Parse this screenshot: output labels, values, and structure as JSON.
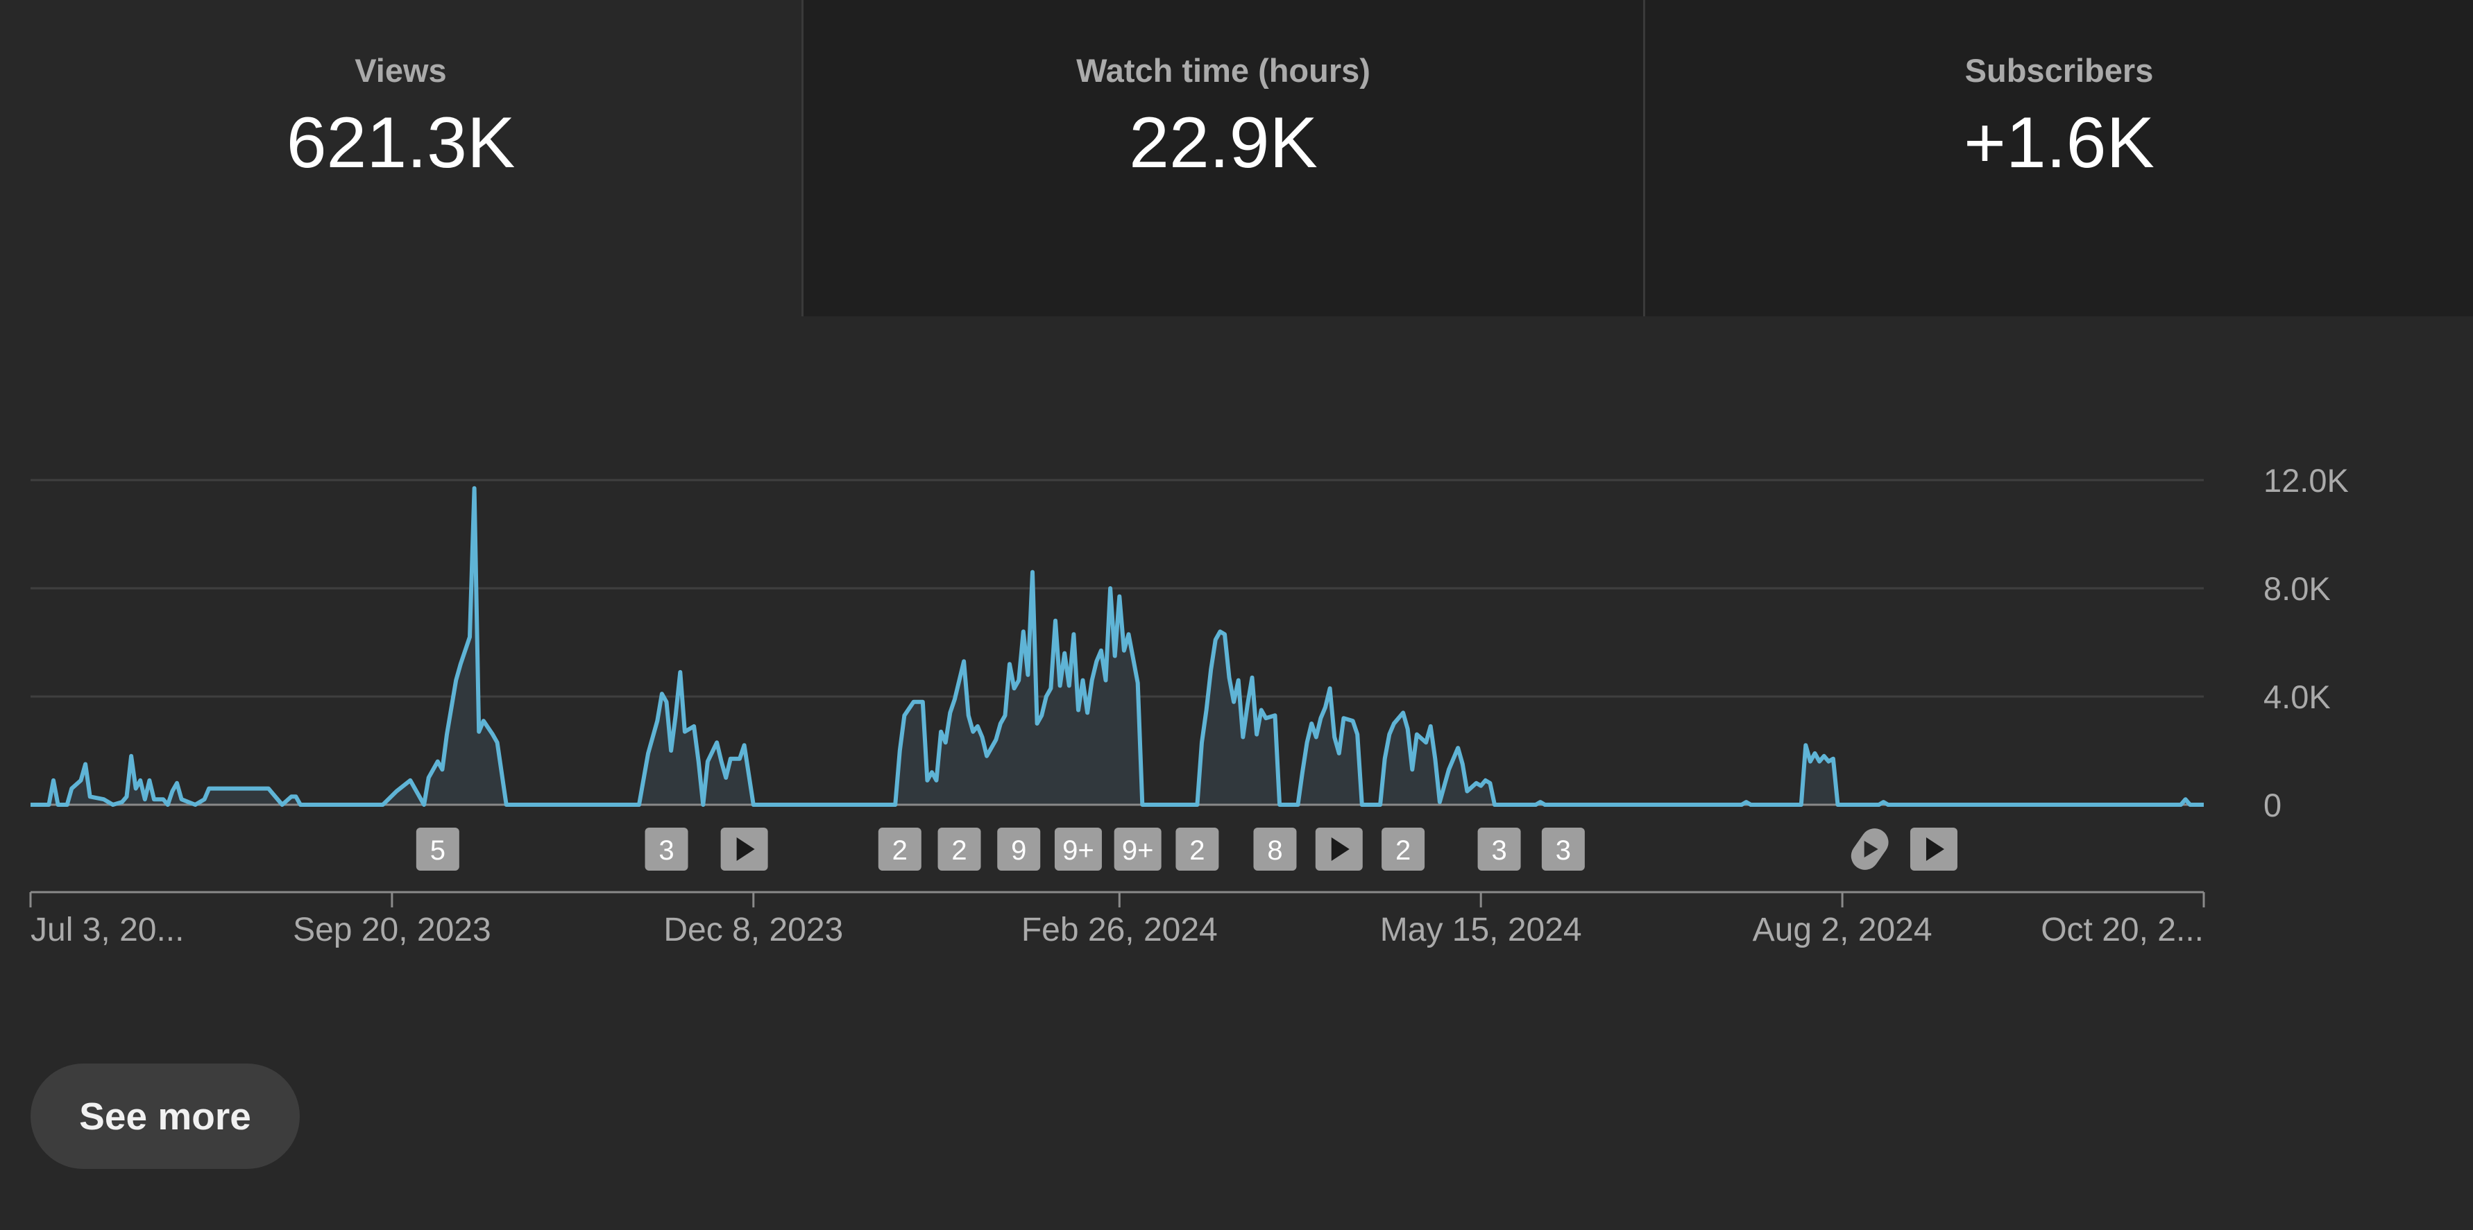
{
  "metrics": [
    {
      "label": "Views",
      "value": "621.3K"
    },
    {
      "label": "Watch time (hours)",
      "value": "22.9K"
    },
    {
      "label": "Subscribers",
      "value": "+1.6K"
    }
  ],
  "see_more_label": "See more",
  "colors": {
    "line": "#5fb4d6",
    "fill": "#31383d",
    "grid": "#3f3f3f",
    "marker": "#9e9e9e",
    "axis_text": "#aaaaaa"
  },
  "chart_data": {
    "type": "area",
    "xlabel": "",
    "ylabel": "",
    "ylim": [
      0,
      12000
    ],
    "y_ticks": [
      {
        "value": 12000,
        "label": "12.0K"
      },
      {
        "value": 8000,
        "label": "8.0K"
      },
      {
        "value": 4000,
        "label": "4.0K"
      },
      {
        "value": 0,
        "label": "0"
      }
    ],
    "x_range": [
      "2023-07-03",
      "2024-10-20"
    ],
    "x_ticks": [
      {
        "date": "2023-07-03",
        "label": "Jul 3, 20..."
      },
      {
        "date": "2023-09-20",
        "label": "Sep 20, 2023"
      },
      {
        "date": "2023-12-08",
        "label": "Dec 8, 2023"
      },
      {
        "date": "2024-02-26",
        "label": "Feb 26, 2024"
      },
      {
        "date": "2024-05-15",
        "label": "May 15, 2024"
      },
      {
        "date": "2024-08-02",
        "label": "Aug 2, 2024"
      },
      {
        "date": "2024-10-20",
        "label": "Oct 20, 2..."
      }
    ],
    "series": [
      {
        "points": [
          [
            "2023-07-03",
            0
          ],
          [
            "2023-07-07",
            0
          ],
          [
            "2023-07-08",
            900
          ],
          [
            "2023-07-09",
            0
          ],
          [
            "2023-07-11",
            0
          ],
          [
            "2023-07-12",
            600
          ],
          [
            "2023-07-14",
            900
          ],
          [
            "2023-07-15",
            1500
          ],
          [
            "2023-07-16",
            300
          ],
          [
            "2023-07-19",
            200
          ],
          [
            "2023-07-21",
            0
          ],
          [
            "2023-07-23",
            100
          ],
          [
            "2023-07-24",
            300
          ],
          [
            "2023-07-25",
            1800
          ],
          [
            "2023-07-26",
            600
          ],
          [
            "2023-07-27",
            900
          ],
          [
            "2023-07-28",
            200
          ],
          [
            "2023-07-29",
            900
          ],
          [
            "2023-07-30",
            200
          ],
          [
            "2023-08-01",
            200
          ],
          [
            "2023-08-02",
            0
          ],
          [
            "2023-08-03",
            500
          ],
          [
            "2023-08-04",
            800
          ],
          [
            "2023-08-05",
            200
          ],
          [
            "2023-08-08",
            0
          ],
          [
            "2023-08-10",
            200
          ],
          [
            "2023-08-11",
            600
          ],
          [
            "2023-08-24",
            600
          ],
          [
            "2023-08-25",
            400
          ],
          [
            "2023-08-27",
            0
          ],
          [
            "2023-08-29",
            300
          ],
          [
            "2023-08-30",
            300
          ],
          [
            "2023-08-31",
            0
          ],
          [
            "2023-09-18",
            0
          ],
          [
            "2023-09-21",
            500
          ],
          [
            "2023-09-24",
            900
          ],
          [
            "2023-09-25",
            600
          ],
          [
            "2023-09-27",
            0
          ],
          [
            "2023-09-28",
            1000
          ],
          [
            "2023-09-30",
            1600
          ],
          [
            "2023-10-01",
            1300
          ],
          [
            "2023-10-02",
            2600
          ],
          [
            "2023-10-04",
            4600
          ],
          [
            "2023-10-05",
            5200
          ],
          [
            "2023-10-07",
            6200
          ],
          [
            "2023-10-08",
            11700
          ],
          [
            "2023-10-09",
            2700
          ],
          [
            "2023-10-10",
            3100
          ],
          [
            "2023-10-12",
            2600
          ],
          [
            "2023-10-13",
            2300
          ],
          [
            "2023-10-15",
            0
          ],
          [
            "2023-11-13",
            0
          ],
          [
            "2023-11-15",
            1900
          ],
          [
            "2023-11-17",
            3100
          ],
          [
            "2023-11-18",
            4100
          ],
          [
            "2023-11-19",
            3800
          ],
          [
            "2023-11-20",
            2000
          ],
          [
            "2023-11-21",
            3300
          ],
          [
            "2023-11-22",
            4900
          ],
          [
            "2023-11-23",
            2700
          ],
          [
            "2023-11-25",
            2900
          ],
          [
            "2023-11-26",
            1600
          ],
          [
            "2023-11-27",
            0
          ],
          [
            "2023-11-28",
            1600
          ],
          [
            "2023-11-30",
            2300
          ],
          [
            "2023-12-01",
            1600
          ],
          [
            "2023-12-02",
            1000
          ],
          [
            "2023-12-03",
            1700
          ],
          [
            "2023-12-05",
            1700
          ],
          [
            "2023-12-06",
            2200
          ],
          [
            "2023-12-08",
            0
          ],
          [
            "2024-01-08",
            0
          ],
          [
            "2024-01-09",
            2000
          ],
          [
            "2024-01-10",
            3300
          ],
          [
            "2024-01-12",
            3800
          ],
          [
            "2024-01-14",
            3800
          ],
          [
            "2024-01-15",
            900
          ],
          [
            "2024-01-16",
            1200
          ],
          [
            "2024-01-17",
            900
          ],
          [
            "2024-01-18",
            2700
          ],
          [
            "2024-01-19",
            2300
          ],
          [
            "2024-01-20",
            3400
          ],
          [
            "2024-01-21",
            3900
          ],
          [
            "2024-01-22",
            4600
          ],
          [
            "2024-01-23",
            5300
          ],
          [
            "2024-01-24",
            3300
          ],
          [
            "2024-01-25",
            2700
          ],
          [
            "2024-01-26",
            2900
          ],
          [
            "2024-01-27",
            2500
          ],
          [
            "2024-01-28",
            1800
          ],
          [
            "2024-01-30",
            2400
          ],
          [
            "2024-01-31",
            3000
          ],
          [
            "2024-02-01",
            3300
          ],
          [
            "2024-02-02",
            5200
          ],
          [
            "2024-02-03",
            4300
          ],
          [
            "2024-02-04",
            4600
          ],
          [
            "2024-02-05",
            6400
          ],
          [
            "2024-02-06",
            4800
          ],
          [
            "2024-02-07",
            8600
          ],
          [
            "2024-02-08",
            3000
          ],
          [
            "2024-02-09",
            3300
          ],
          [
            "2024-02-10",
            4000
          ],
          [
            "2024-02-11",
            4300
          ],
          [
            "2024-02-12",
            6800
          ],
          [
            "2024-02-13",
            4400
          ],
          [
            "2024-02-14",
            5600
          ],
          [
            "2024-02-15",
            4400
          ],
          [
            "2024-02-16",
            6300
          ],
          [
            "2024-02-17",
            3500
          ],
          [
            "2024-02-18",
            4600
          ],
          [
            "2024-02-19",
            3400
          ],
          [
            "2024-02-20",
            4600
          ],
          [
            "2024-02-21",
            5300
          ],
          [
            "2024-02-22",
            5700
          ],
          [
            "2024-02-23",
            4600
          ],
          [
            "2024-02-24",
            8000
          ],
          [
            "2024-02-25",
            5500
          ],
          [
            "2024-02-26",
            7700
          ],
          [
            "2024-02-27",
            5700
          ],
          [
            "2024-02-28",
            6300
          ],
          [
            "2024-03-01",
            4500
          ],
          [
            "2024-03-02",
            0
          ],
          [
            "2024-03-14",
            0
          ],
          [
            "2024-03-15",
            2300
          ],
          [
            "2024-03-16",
            3500
          ],
          [
            "2024-03-17",
            5000
          ],
          [
            "2024-03-18",
            6100
          ],
          [
            "2024-03-19",
            6400
          ],
          [
            "2024-03-20",
            6300
          ],
          [
            "2024-03-21",
            4700
          ],
          [
            "2024-03-22",
            3800
          ],
          [
            "2024-03-23",
            4600
          ],
          [
            "2024-03-24",
            2500
          ],
          [
            "2024-03-25",
            3700
          ],
          [
            "2024-03-26",
            4700
          ],
          [
            "2024-03-27",
            2600
          ],
          [
            "2024-03-28",
            3500
          ],
          [
            "2024-03-29",
            3200
          ],
          [
            "2024-03-31",
            3300
          ],
          [
            "2024-04-01",
            0
          ],
          [
            "2024-04-05",
            0
          ],
          [
            "2024-04-06",
            1200
          ],
          [
            "2024-04-07",
            2300
          ],
          [
            "2024-04-08",
            3000
          ],
          [
            "2024-04-09",
            2500
          ],
          [
            "2024-04-10",
            3200
          ],
          [
            "2024-04-11",
            3600
          ],
          [
            "2024-04-12",
            4300
          ],
          [
            "2024-04-13",
            2500
          ],
          [
            "2024-04-14",
            1900
          ],
          [
            "2024-04-15",
            3200
          ],
          [
            "2024-04-17",
            3100
          ],
          [
            "2024-04-18",
            2600
          ],
          [
            "2024-04-19",
            0
          ],
          [
            "2024-04-23",
            0
          ],
          [
            "2024-04-24",
            1700
          ],
          [
            "2024-04-25",
            2600
          ],
          [
            "2024-04-26",
            3000
          ],
          [
            "2024-04-28",
            3400
          ],
          [
            "2024-04-29",
            2800
          ],
          [
            "2024-04-30",
            1300
          ],
          [
            "2024-05-01",
            2600
          ],
          [
            "2024-05-03",
            2300
          ],
          [
            "2024-05-04",
            2900
          ],
          [
            "2024-05-05",
            1700
          ],
          [
            "2024-05-06",
            100
          ],
          [
            "2024-05-08",
            1300
          ],
          [
            "2024-05-10",
            2100
          ],
          [
            "2024-05-11",
            1500
          ],
          [
            "2024-05-12",
            500
          ],
          [
            "2024-05-14",
            800
          ],
          [
            "2024-05-15",
            700
          ],
          [
            "2024-05-16",
            900
          ],
          [
            "2024-05-17",
            800
          ],
          [
            "2024-05-18",
            0
          ],
          [
            "2024-05-27",
            0
          ],
          [
            "2024-05-28",
            100
          ],
          [
            "2024-05-29",
            0
          ],
          [
            "2024-07-11",
            0
          ],
          [
            "2024-07-12",
            100
          ],
          [
            "2024-07-13",
            0
          ],
          [
            "2024-07-24",
            0
          ],
          [
            "2024-07-25",
            2200
          ],
          [
            "2024-07-26",
            1600
          ],
          [
            "2024-07-27",
            1900
          ],
          [
            "2024-07-28",
            1600
          ],
          [
            "2024-07-29",
            1800
          ],
          [
            "2024-07-30",
            1600
          ],
          [
            "2024-07-31",
            1700
          ],
          [
            "2024-08-01",
            0
          ],
          [
            "2024-08-10",
            0
          ],
          [
            "2024-08-11",
            100
          ],
          [
            "2024-08-12",
            0
          ],
          [
            "2024-10-15",
            0
          ],
          [
            "2024-10-16",
            200
          ],
          [
            "2024-10-17",
            0
          ],
          [
            "2024-10-20",
            0
          ]
        ]
      }
    ],
    "markers": [
      {
        "date": "2023-09-30",
        "kind": "count",
        "label": "5"
      },
      {
        "date": "2023-11-19",
        "kind": "count",
        "label": "3"
      },
      {
        "date": "2023-12-06",
        "kind": "play",
        "label": ""
      },
      {
        "date": "2024-01-09",
        "kind": "count",
        "label": "2"
      },
      {
        "date": "2024-01-22",
        "kind": "count",
        "label": "2"
      },
      {
        "date": "2024-02-04",
        "kind": "count",
        "label": "9"
      },
      {
        "date": "2024-02-17",
        "kind": "count",
        "label": "9+"
      },
      {
        "date": "2024-03-01",
        "kind": "count",
        "label": "9+"
      },
      {
        "date": "2024-03-14",
        "kind": "count",
        "label": "2"
      },
      {
        "date": "2024-03-31",
        "kind": "count",
        "label": "8"
      },
      {
        "date": "2024-04-14",
        "kind": "play",
        "label": ""
      },
      {
        "date": "2024-04-28",
        "kind": "count",
        "label": "2"
      },
      {
        "date": "2024-05-19",
        "kind": "count",
        "label": "3"
      },
      {
        "date": "2024-06-02",
        "kind": "count",
        "label": "3"
      },
      {
        "date": "2024-08-08",
        "kind": "shorts",
        "label": ""
      },
      {
        "date": "2024-08-22",
        "kind": "play",
        "label": ""
      }
    ]
  }
}
